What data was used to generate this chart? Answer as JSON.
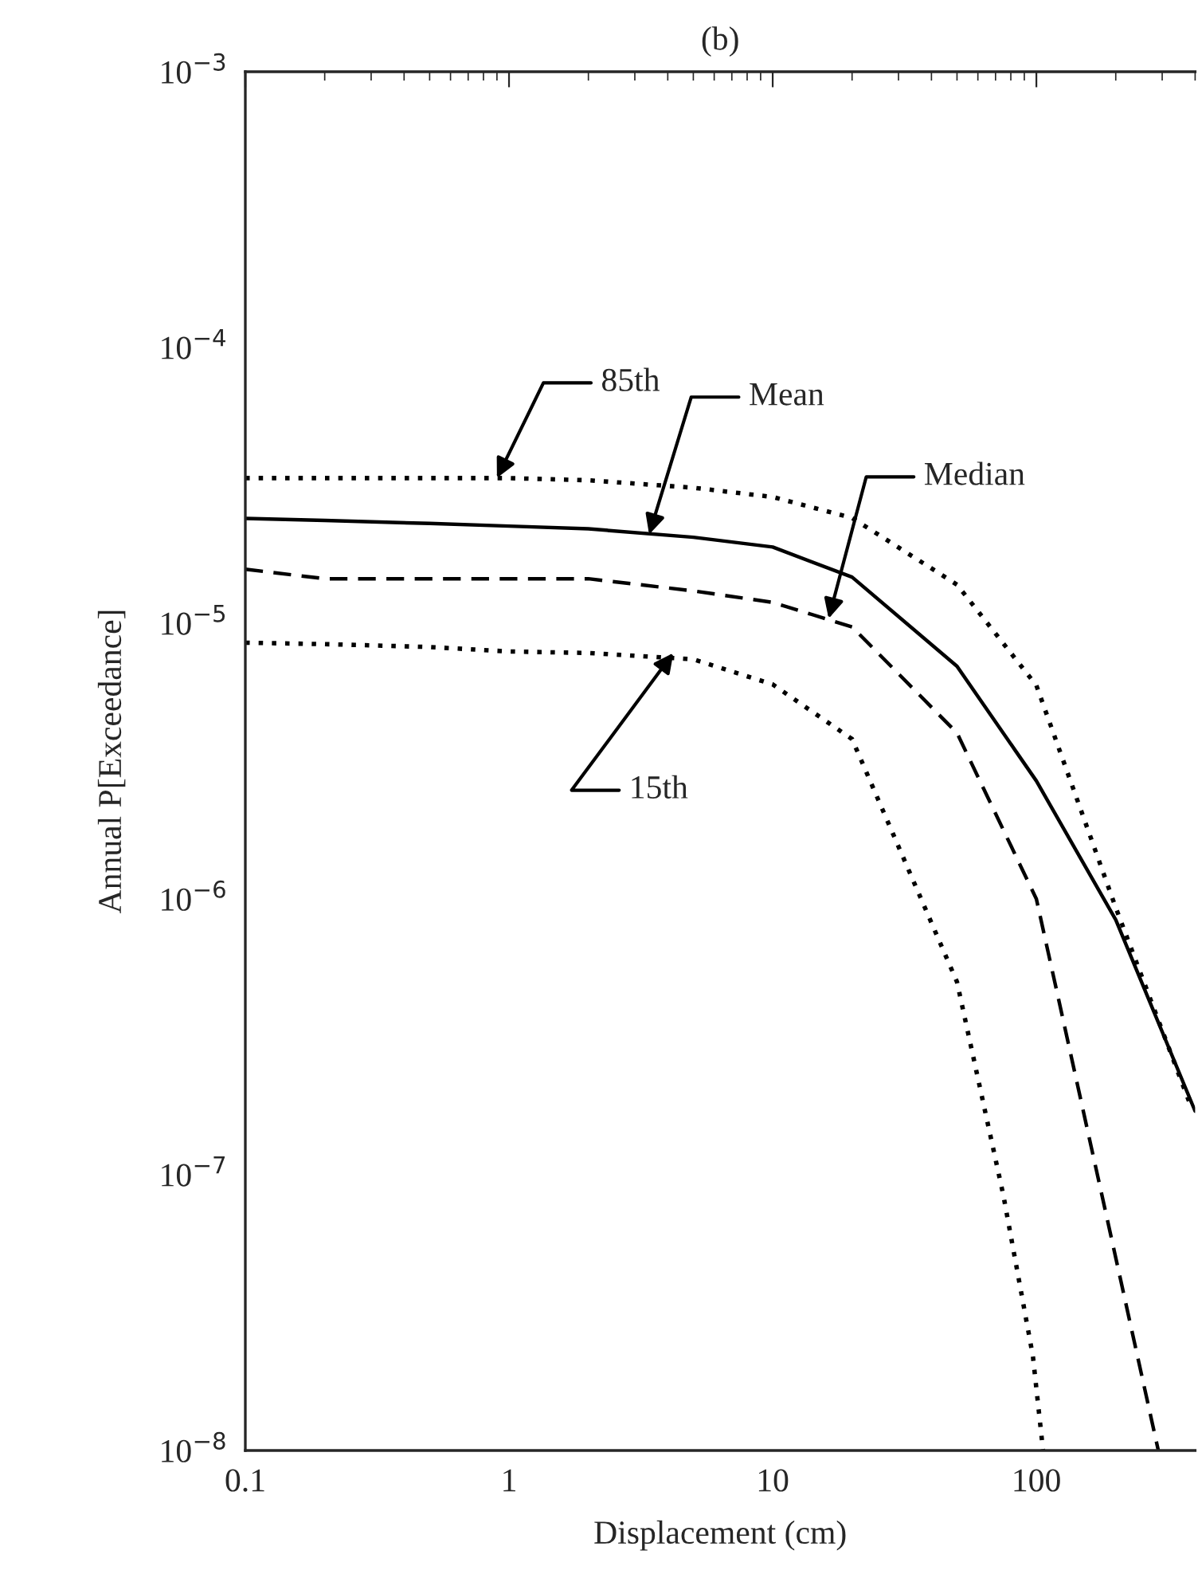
{
  "chart_data": {
    "type": "line",
    "title": "(b)",
    "xlabel": "Displacement (cm)",
    "ylabel": "Annual P[Exceedance]",
    "log": "xy",
    "xlim": [
      0.1,
      400
    ],
    "xticks": [
      0.1,
      1,
      10,
      100
    ],
    "ylim": [
      1e-08,
      0.001
    ],
    "yticks": [
      {
        "value": 1e-08,
        "label": "10$^{−8}$"
      },
      {
        "value": 1e-07,
        "label": "10$^{−7}$"
      },
      {
        "value": 1e-06,
        "label": "10$^{−6}$"
      },
      {
        "value": 1e-05,
        "label": "10$^{−5}$"
      },
      {
        "value": 0.0001,
        "label": "10$^{−4}$"
      },
      {
        "value": 0.001,
        "label": "10$^{−3}$"
      }
    ],
    "grid": false,
    "legend": false,
    "marker": "none",
    "series": [
      {
        "color": "#000000",
        "line_style": "dotted",
        "x": [
          0.1,
          0.2,
          0.5,
          1,
          2,
          5,
          10,
          20,
          50,
          100,
          200,
          383
        ],
        "values": [
          3.36e-05,
          3.36e-05,
          3.36e-05,
          3.36e-05,
          3.3e-05,
          3.1e-05,
          2.87e-05,
          2.41e-05,
          1.38e-05,
          5.95e-06,
          9.3e-07,
          1.8e-07
        ]
      },
      {
        "color": "#000000",
        "line_style": "solid",
        "x": [
          0.1,
          0.2,
          0.5,
          1,
          2,
          5,
          10,
          20,
          50,
          100,
          200,
          400
        ],
        "values": [
          2.4e-05,
          2.36e-05,
          2.3e-05,
          2.25e-05,
          2.2e-05,
          2.05e-05,
          1.89e-05,
          1.47e-05,
          6.98e-06,
          2.68e-06,
          8.4e-07,
          1.7e-07
        ]
      },
      {
        "color": "#000000",
        "line_style": "dashed",
        "x": [
          0.1,
          0.2,
          0.5,
          1,
          2,
          5,
          10,
          20,
          50,
          100,
          200,
          290
        ],
        "values": [
          1.57e-05,
          1.45e-05,
          1.45e-05,
          1.45e-05,
          1.45e-05,
          1.31e-05,
          1.19e-05,
          9.7e-06,
          4e-06,
          1e-06,
          5e-08,
          1e-08
        ]
      },
      {
        "color": "#000000",
        "line_style": "dotted",
        "x": [
          0.1,
          0.2,
          0.5,
          1,
          2,
          5,
          10,
          20,
          50,
          75,
          97,
          106
        ],
        "values": [
          8.5e-06,
          8.4e-06,
          8.2e-06,
          7.9e-06,
          7.8e-06,
          7.4e-06,
          6e-06,
          3.8e-06,
          5e-07,
          8.4e-08,
          2.2e-08,
          1e-08
        ]
      }
    ],
    "annotations": [
      {
        "text": "85th",
        "x": 0.9,
        "y": 3.36e-05
      },
      {
        "text": "Mean",
        "x": 3.4,
        "y": 2.1e-05
      },
      {
        "text": "Median",
        "x": 16.3,
        "y": 1.04e-05
      },
      {
        "text": "15th",
        "x": 4.2,
        "y": 7.8e-06
      }
    ]
  }
}
